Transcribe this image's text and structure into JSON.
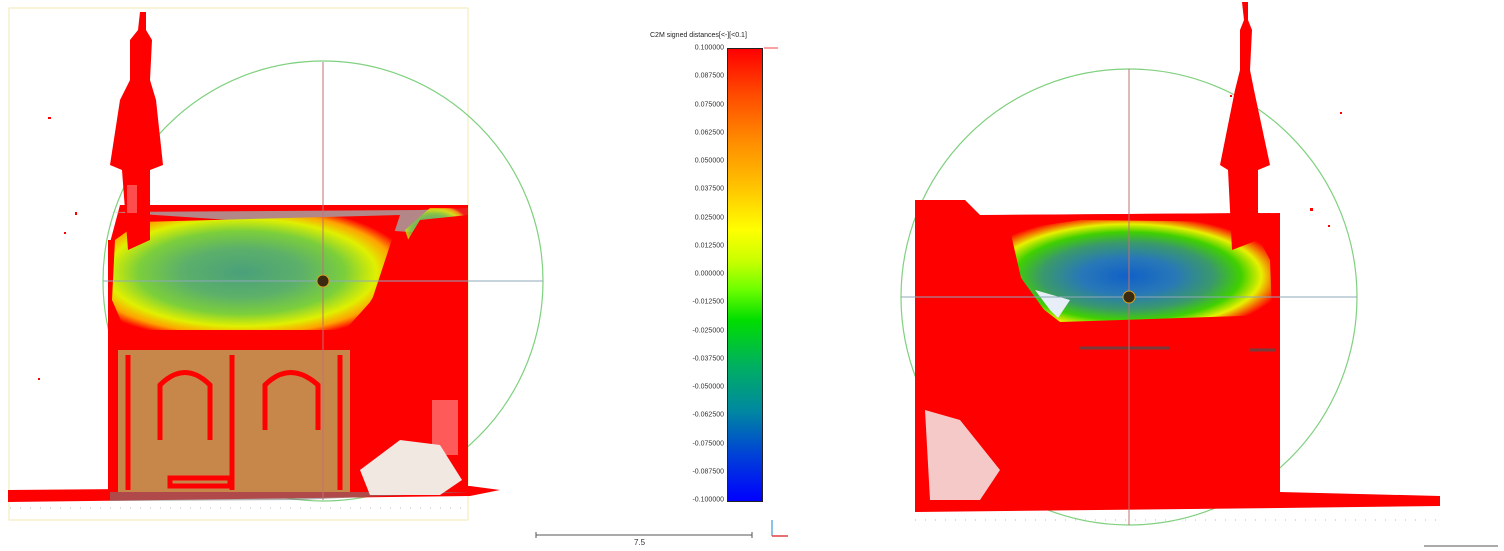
{
  "scalebar": {
    "title": "C2M signed distances[<-][<0.1]",
    "ticks": [
      "0.100000",
      "0.087500",
      "0.075000",
      "0.062500",
      "0.050000",
      "0.037500",
      "0.025000",
      "0.012500",
      "0.000000",
      "-0.012500",
      "-0.025000",
      "-0.037500",
      "-0.050000",
      "-0.062500",
      "-0.075000",
      "-0.087500",
      "-0.100000"
    ],
    "range": [
      -0.1,
      0.1
    ]
  },
  "length_scale": {
    "label": "7.5"
  },
  "colors": {
    "max": "#ff0000",
    "zero": "#ffff00",
    "min": "#0000ff",
    "trackball_circle": "#7fd07f",
    "trackball_axis_v": "#c07070",
    "trackball_axis_h": "#8fa8b8",
    "mesh_overlay": "#c8874a"
  },
  "icons": {
    "axis_gizmo": "axis-gizmo-icon"
  }
}
